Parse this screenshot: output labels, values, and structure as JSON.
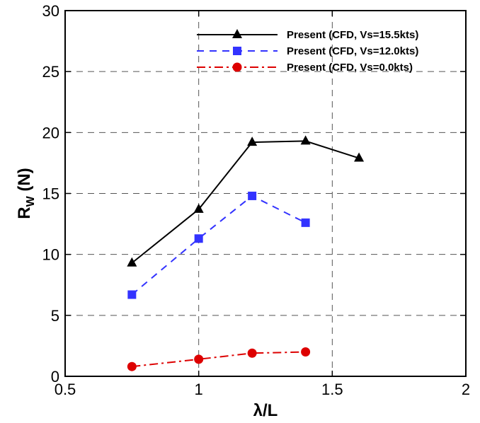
{
  "chart_data": {
    "type": "line",
    "xlabel": "λ/L",
    "ylabel_main": "R",
    "ylabel_sub": "W",
    "ylabel_suffix": " (N)",
    "xlim": [
      0.5,
      2
    ],
    "ylim": [
      0,
      30
    ],
    "xticks": [
      0.5,
      1,
      1.5,
      2
    ],
    "xtick_labels": [
      "0.5",
      "1",
      "1.5",
      "2"
    ],
    "yticks": [
      0,
      5,
      10,
      15,
      20,
      25,
      30
    ],
    "ytick_labels": [
      "0",
      "5",
      "10",
      "15",
      "20",
      "25",
      "30"
    ],
    "grid": true,
    "legend_position": "top-right",
    "series": [
      {
        "name": "Present (CFD, Vs=15.5kts)",
        "color": "#000000",
        "dash": "solid",
        "marker": "triangle",
        "x": [
          0.75,
          1.0,
          1.2,
          1.4,
          1.6
        ],
        "y": [
          9.3,
          13.7,
          19.2,
          19.3,
          17.9
        ]
      },
      {
        "name": "Present (CFD, Vs=12.0kts)",
        "color": "#3333ff",
        "dash": "dashed",
        "marker": "square",
        "x": [
          0.75,
          1.0,
          1.2,
          1.4
        ],
        "y": [
          6.7,
          11.3,
          14.8,
          12.6
        ]
      },
      {
        "name": "Present (CFD, Vs=0.0kts)",
        "color": "#dd0000",
        "dash": "dashdot",
        "marker": "circle",
        "x": [
          0.75,
          1.0,
          1.2,
          1.4
        ],
        "y": [
          0.8,
          1.4,
          1.9,
          2.0
        ]
      }
    ]
  }
}
